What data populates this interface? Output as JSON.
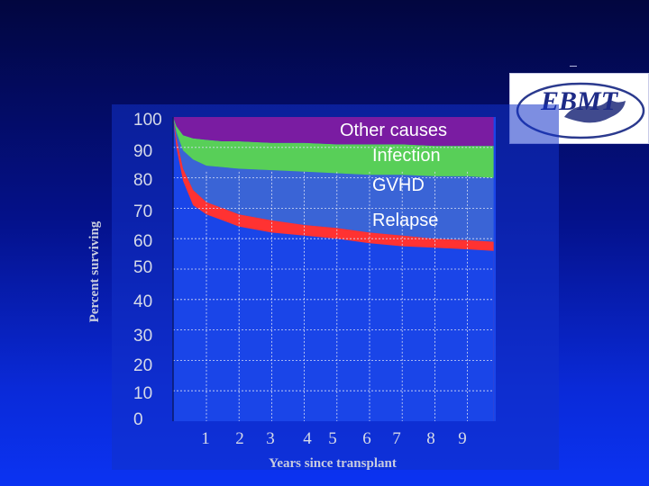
{
  "logo": {
    "text": "EBMT"
  },
  "chart_data": {
    "type": "area",
    "title": "",
    "xlabel": "Years since transplant",
    "ylabel": "Percent surviving",
    "xlim": [
      0,
      10
    ],
    "ylim": [
      0,
      100
    ],
    "x_ticks": [
      1,
      2,
      3,
      4,
      5,
      6,
      7,
      8,
      9
    ],
    "y_ticks": [
      0,
      10,
      20,
      30,
      40,
      50,
      60,
      70,
      80,
      90,
      100
    ],
    "grid": true,
    "stacked": true,
    "x": [
      0,
      0.1,
      0.3,
      0.6,
      1,
      1.5,
      2,
      3,
      4,
      5,
      6,
      7,
      8,
      9,
      9.8
    ],
    "series": [
      {
        "name": "Relapse",
        "color": "#ff3232",
        "upper": [
          100,
          93,
          83,
          76,
          72,
          70,
          68,
          66,
          64.5,
          63.5,
          62,
          61,
          60,
          59.5,
          59
        ]
      },
      {
        "name": "GVHD",
        "color": "#3a64d6",
        "upper": [
          100,
          95,
          89,
          86,
          84,
          83.5,
          83,
          82.5,
          82,
          81.5,
          81,
          81,
          80.5,
          80.5,
          80
        ]
      },
      {
        "name": "Infection",
        "color": "#58cf58",
        "upper": [
          100,
          97,
          94,
          93,
          92.5,
          92,
          92,
          91.5,
          91.5,
          91,
          91,
          91,
          90.5,
          90.5,
          90.5
        ]
      },
      {
        "name": "Other causes",
        "color": "#7a1ca2",
        "upper": [
          100,
          100,
          100,
          100,
          100,
          100,
          100,
          100,
          100,
          100,
          100,
          100,
          100,
          100,
          100
        ]
      }
    ]
  }
}
